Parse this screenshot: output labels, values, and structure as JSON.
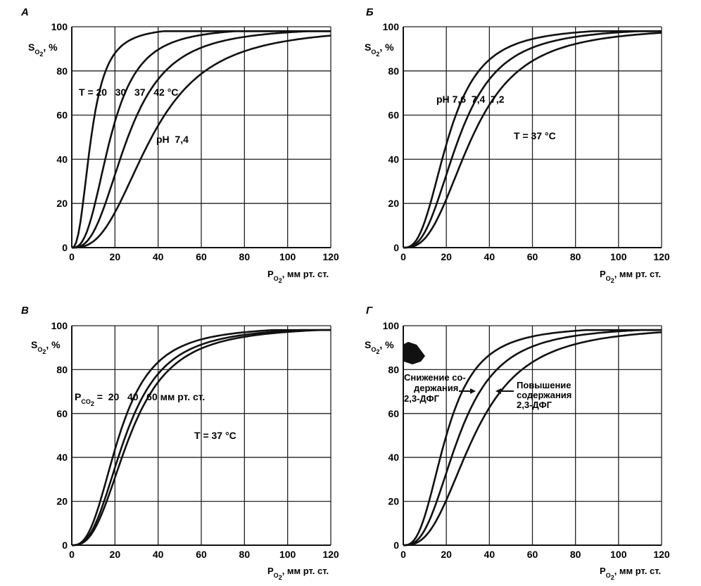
{
  "chart_data": [
    {
      "type": "line",
      "panel_label": "А",
      "y_label": "S",
      "y_label_sub": "O",
      "y_label_subsub": "2",
      "y_label_unit": ", %",
      "x_label": "P",
      "x_label_sub": "O",
      "x_label_subsub": "2",
      "x_label_unit": ", мм рт. ст.",
      "xlim": [
        0,
        120
      ],
      "ylim": [
        0,
        100
      ],
      "x_ticks": [
        0,
        20,
        40,
        60,
        80,
        100,
        120
      ],
      "y_ticks": [
        0,
        20,
        40,
        60,
        80,
        100
      ],
      "grid": true,
      "series_p50": [
        9,
        18,
        26,
        37
      ],
      "series_n": [
        2.5,
        2.7,
        2.7,
        2.7
      ],
      "annotations": [
        {
          "text": "T = 20   30   37   42 °C"
        },
        {
          "text": "pH  7,4"
        }
      ]
    },
    {
      "type": "line",
      "panel_label": "Б",
      "y_label": "S",
      "y_label_sub": "O",
      "y_label_subsub": "2",
      "y_label_unit": ", %",
      "x_label": "P",
      "x_label_sub": "O",
      "x_label_subsub": "2",
      "x_label_unit": ", мм рт. ст.",
      "xlim": [
        0,
        120
      ],
      "ylim": [
        0,
        100
      ],
      "x_ticks": [
        0,
        20,
        40,
        60,
        80,
        100,
        120
      ],
      "y_ticks": [
        0,
        20,
        40,
        60,
        80,
        100
      ],
      "grid": true,
      "series_p50": [
        21,
        26,
        32
      ],
      "series_n": [
        2.7,
        2.7,
        2.7
      ],
      "annotations": [
        {
          "text": "pH 7,6  7,4  7,2"
        },
        {
          "text": "T = 37 °C"
        }
      ]
    },
    {
      "type": "line",
      "panel_label": "В",
      "y_label": "S",
      "y_label_sub": "O",
      "y_label_subsub": "2",
      "y_label_unit": ", %",
      "x_label": "P",
      "x_label_sub": "O",
      "x_label_subsub": "2",
      "x_label_unit": ", мм рт. ст.",
      "xlim": [
        0,
        120
      ],
      "ylim": [
        0,
        100
      ],
      "x_ticks": [
        0,
        20,
        40,
        60,
        80,
        100,
        120
      ],
      "y_ticks": [
        0,
        20,
        40,
        60,
        80,
        100
      ],
      "grid": true,
      "series_p50": [
        22,
        25,
        27
      ],
      "series_n": [
        2.7,
        2.7,
        2.7
      ],
      "annotations": [
        {
          "text_prefix": "P",
          "text_sub": "CO",
          "text_subsub": "2",
          "text": " =  20   40   60 мм рт. ст."
        },
        {
          "text": "T = 37 °C"
        }
      ]
    },
    {
      "type": "line",
      "panel_label": "Г",
      "y_label": "S",
      "y_label_sub": "O",
      "y_label_subsub": "2",
      "y_label_unit": ", %",
      "x_label": "P",
      "x_label_sub": "O",
      "x_label_subsub": "2",
      "x_label_unit": ", мм рт. ст.",
      "xlim": [
        0,
        120
      ],
      "ylim": [
        0,
        100
      ],
      "x_ticks": [
        "0",
        "20",
        "40",
        "60",
        "80",
        "100",
        "120"
      ],
      "y_ticks": [
        0,
        20,
        40,
        60,
        80,
        100
      ],
      "grid": true,
      "series_p50": [
        20,
        26,
        33
      ],
      "series_n": [
        2.7,
        2.7,
        2.7
      ],
      "annotations": [
        {
          "lines": [
            "Снижение со-",
            "держания",
            "2,3-ДФГ"
          ]
        },
        {
          "lines": [
            "Повышение",
            "содержания",
            "2,3-ДФГ"
          ]
        }
      ]
    }
  ]
}
